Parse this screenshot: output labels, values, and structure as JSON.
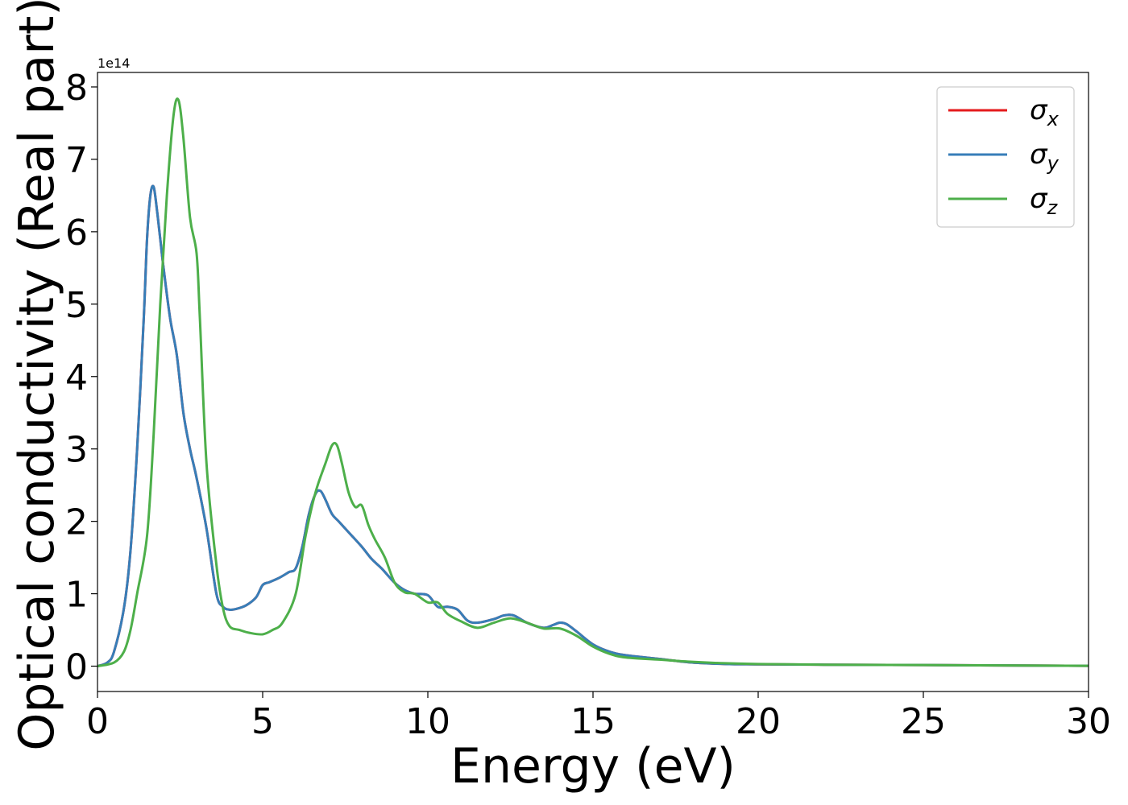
{
  "chart_data": {
    "type": "line",
    "title": "",
    "xlabel": "Energy (eV)",
    "ylabel": "Optical conductivity (Real part)",
    "xlim": [
      0,
      30
    ],
    "ylim": [
      -0.35,
      8.2
    ],
    "y_offset_label": "1e14",
    "xticks": [
      0,
      5,
      10,
      15,
      20,
      25,
      30
    ],
    "yticks": [
      0,
      1,
      2,
      3,
      4,
      5,
      6,
      7,
      8
    ],
    "grid": false,
    "legend_position": "top-right",
    "series": [
      {
        "name": "σx",
        "symbol": "σ",
        "subscript": "x",
        "color": "#e41a1c",
        "x": [
          0,
          0.3,
          0.5,
          0.8,
          1.0,
          1.2,
          1.4,
          1.5,
          1.6,
          1.7,
          1.8,
          1.9,
          2.0,
          2.2,
          2.4,
          2.6,
          2.8,
          3.0,
          3.3,
          3.6,
          3.8,
          4.0,
          4.2,
          4.5,
          4.8,
          5.0,
          5.2,
          5.5,
          5.8,
          6.0,
          6.2,
          6.4,
          6.6,
          6.75,
          6.9,
          7.1,
          7.3,
          7.6,
          8.0,
          8.3,
          8.6,
          9.0,
          9.3,
          9.6,
          10.0,
          10.3,
          10.6,
          10.9,
          11.2,
          11.5,
          12.0,
          12.3,
          12.6,
          13.0,
          13.5,
          13.8,
          14.0,
          14.2,
          14.5,
          15.0,
          15.5,
          16.0,
          17.0,
          18.0,
          19.0,
          20.0,
          22.0,
          25.0,
          28.0,
          30.0
        ],
        "values": [
          0,
          0.05,
          0.2,
          0.8,
          1.6,
          3.0,
          4.8,
          5.9,
          6.5,
          6.62,
          6.3,
          5.9,
          5.5,
          4.8,
          4.3,
          3.5,
          3.0,
          2.6,
          1.9,
          1.0,
          0.82,
          0.78,
          0.79,
          0.84,
          0.95,
          1.12,
          1.16,
          1.22,
          1.3,
          1.35,
          1.65,
          2.1,
          2.38,
          2.42,
          2.3,
          2.1,
          2.0,
          1.85,
          1.65,
          1.48,
          1.35,
          1.15,
          1.05,
          1.0,
          0.98,
          0.82,
          0.82,
          0.78,
          0.63,
          0.6,
          0.65,
          0.7,
          0.7,
          0.6,
          0.53,
          0.57,
          0.6,
          0.58,
          0.48,
          0.3,
          0.2,
          0.15,
          0.1,
          0.05,
          0.03,
          0.025,
          0.02,
          0.015,
          0.008,
          0.005
        ]
      },
      {
        "name": "σy",
        "symbol": "σ",
        "subscript": "y",
        "color": "#377eb8",
        "x": [
          0,
          0.3,
          0.5,
          0.8,
          1.0,
          1.2,
          1.4,
          1.5,
          1.6,
          1.7,
          1.8,
          1.9,
          2.0,
          2.2,
          2.4,
          2.6,
          2.8,
          3.0,
          3.3,
          3.6,
          3.8,
          4.0,
          4.2,
          4.5,
          4.8,
          5.0,
          5.2,
          5.5,
          5.8,
          6.0,
          6.2,
          6.4,
          6.6,
          6.75,
          6.9,
          7.1,
          7.3,
          7.6,
          8.0,
          8.3,
          8.6,
          9.0,
          9.3,
          9.6,
          10.0,
          10.3,
          10.6,
          10.9,
          11.2,
          11.5,
          12.0,
          12.3,
          12.6,
          13.0,
          13.5,
          13.8,
          14.0,
          14.2,
          14.5,
          15.0,
          15.5,
          16.0,
          17.0,
          18.0,
          19.0,
          20.0,
          22.0,
          25.0,
          28.0,
          30.0
        ],
        "values": [
          0,
          0.05,
          0.2,
          0.8,
          1.6,
          3.0,
          4.8,
          5.9,
          6.5,
          6.62,
          6.3,
          5.9,
          5.5,
          4.8,
          4.3,
          3.5,
          3.0,
          2.6,
          1.9,
          1.0,
          0.82,
          0.78,
          0.79,
          0.84,
          0.95,
          1.12,
          1.16,
          1.22,
          1.3,
          1.35,
          1.65,
          2.1,
          2.38,
          2.42,
          2.3,
          2.1,
          2.0,
          1.85,
          1.65,
          1.48,
          1.35,
          1.15,
          1.05,
          1.0,
          0.98,
          0.82,
          0.82,
          0.78,
          0.63,
          0.6,
          0.65,
          0.7,
          0.7,
          0.6,
          0.53,
          0.57,
          0.6,
          0.58,
          0.48,
          0.3,
          0.2,
          0.15,
          0.1,
          0.05,
          0.03,
          0.025,
          0.02,
          0.015,
          0.008,
          0.005
        ]
      },
      {
        "name": "σz",
        "symbol": "σ",
        "subscript": "z",
        "color": "#4daf4a",
        "x": [
          0,
          0.5,
          0.8,
          1.0,
          1.2,
          1.5,
          1.7,
          1.9,
          2.1,
          2.3,
          2.45,
          2.6,
          2.8,
          3.0,
          3.1,
          3.3,
          3.6,
          3.8,
          4.0,
          4.3,
          4.6,
          5.0,
          5.3,
          5.6,
          6.0,
          6.3,
          6.6,
          6.9,
          7.1,
          7.25,
          7.4,
          7.6,
          7.8,
          8.0,
          8.2,
          8.4,
          8.7,
          9.0,
          9.3,
          9.6,
          10.0,
          10.3,
          10.6,
          11.0,
          11.5,
          12.0,
          12.5,
          13.0,
          13.5,
          14.0,
          14.5,
          15.0,
          15.5,
          16.0,
          17.0,
          18.0,
          19.0,
          20.0,
          22.0,
          25.0,
          28.0,
          30.0
        ],
        "values": [
          0,
          0.05,
          0.2,
          0.5,
          1.0,
          1.8,
          3.2,
          5.0,
          6.5,
          7.6,
          7.82,
          7.3,
          6.2,
          5.7,
          4.8,
          2.8,
          1.4,
          0.8,
          0.55,
          0.5,
          0.46,
          0.44,
          0.5,
          0.6,
          1.0,
          1.8,
          2.4,
          2.8,
          3.05,
          3.05,
          2.8,
          2.4,
          2.2,
          2.22,
          1.95,
          1.75,
          1.5,
          1.15,
          1.02,
          1.0,
          0.88,
          0.88,
          0.72,
          0.62,
          0.53,
          0.6,
          0.66,
          0.6,
          0.52,
          0.52,
          0.42,
          0.27,
          0.17,
          0.12,
          0.09,
          0.06,
          0.04,
          0.03,
          0.02,
          0.015,
          0.008,
          0.005
        ]
      }
    ]
  }
}
